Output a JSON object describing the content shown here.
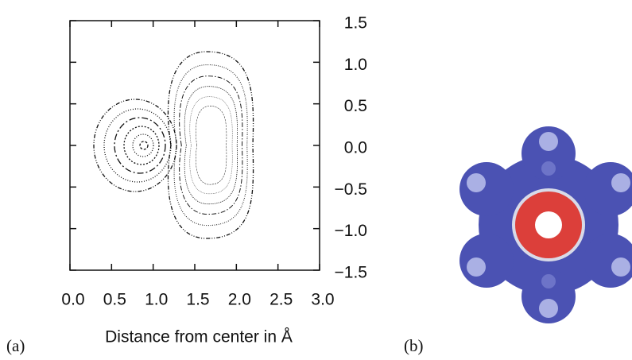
{
  "chart_data": {
    "type": "contour",
    "xlabel": "Distance from center in Å",
    "xlim": [
      0,
      3
    ],
    "ylim": [
      -1.5,
      1.5
    ],
    "xticks": [
      {
        "value": 0,
        "label": "0.0"
      },
      {
        "value": 0.5,
        "label": "0.5"
      },
      {
        "value": 1,
        "label": "1.0"
      },
      {
        "value": 1.5,
        "label": "1.5"
      },
      {
        "value": 2,
        "label": "2.0"
      },
      {
        "value": 2.5,
        "label": "2.5"
      },
      {
        "value": 3,
        "label": "3.0"
      }
    ],
    "yticks": [
      {
        "value": 1.5,
        "label": "1.5"
      },
      {
        "value": 1,
        "label": "1.0"
      },
      {
        "value": 0.5,
        "label": "0.5"
      },
      {
        "value": 0,
        "label": "0.0"
      },
      {
        "value": -0.5,
        "label": "−0.5"
      },
      {
        "value": -1,
        "label": "−1.0"
      },
      {
        "value": -1.5,
        "label": "−1.5"
      }
    ]
  },
  "panels": {
    "a": "(a)",
    "b": "(b)"
  }
}
